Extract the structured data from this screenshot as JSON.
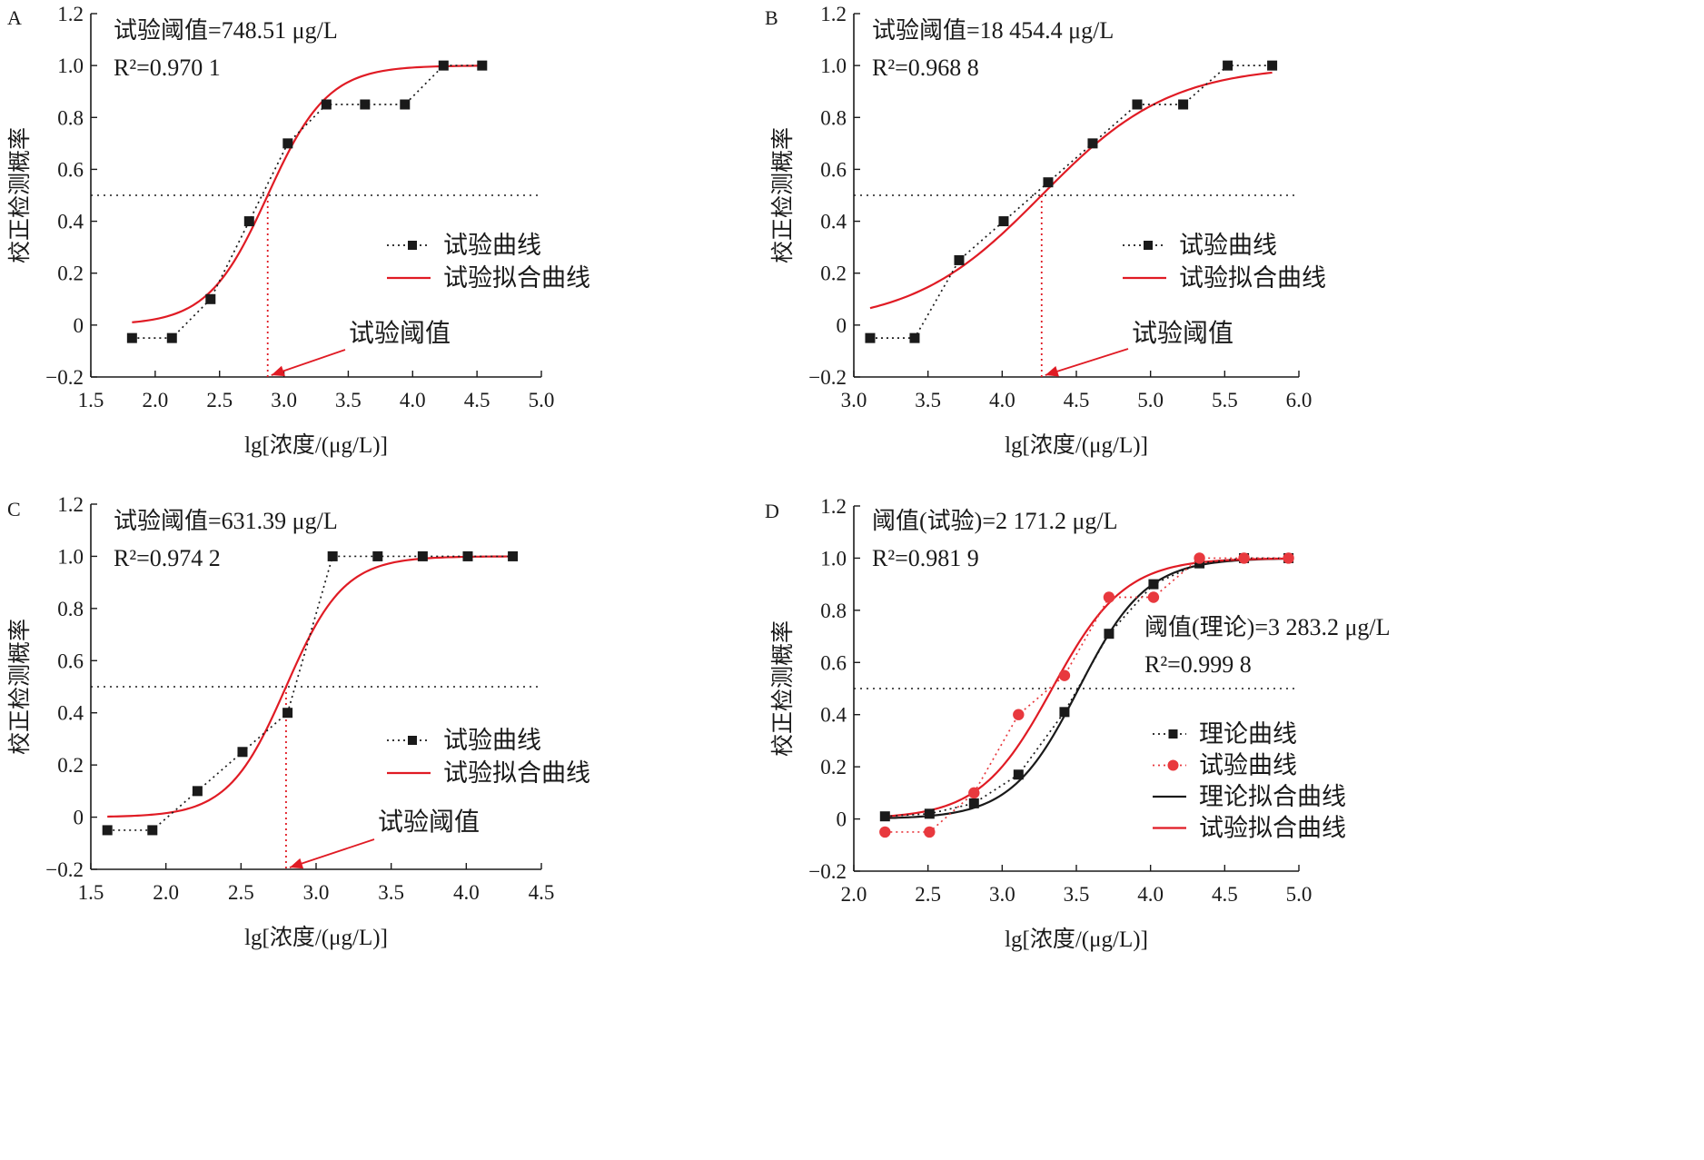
{
  "colors": {
    "black": "#1a1a1a",
    "red": "#e01b24",
    "red_marker": "#e8393e"
  },
  "chart_data": [
    {
      "panel": "A",
      "type": "line",
      "xlabel": "lg[浓度/(μg/L)]",
      "ylabel": "校正检测概率",
      "xlim": [
        1.5,
        5.0
      ],
      "ylim": [
        -0.2,
        1.2
      ],
      "xticks": [
        "1.5",
        "2.0",
        "2.5",
        "3.0",
        "3.5",
        "4.0",
        "4.5",
        "5.0"
      ],
      "yticks": [
        "−0.2",
        "0",
        "0.2",
        "0.4",
        "0.6",
        "0.8",
        "1.0",
        "1.2"
      ],
      "annotations": [
        "试验阈值=748.51 μg/L",
        "R²=0.970 1"
      ],
      "threshold_label": "试验阈值",
      "threshold_x": 2.874,
      "reference_line_y": 0.5,
      "series": [
        {
          "name": "试验曲线",
          "style": "dotted-marker",
          "marker": "square",
          "color": "#1a1a1a",
          "x": [
            1.82,
            2.13,
            2.43,
            2.73,
            3.03,
            3.33,
            3.63,
            3.94,
            4.24,
            4.54
          ],
          "y": [
            -0.05,
            -0.05,
            0.1,
            0.4,
            0.7,
            0.85,
            0.85,
            0.85,
            1.0,
            1.0
          ]
        },
        {
          "name": "试验拟合曲线",
          "style": "solid",
          "color": "#e01b24",
          "fit": {
            "center": 2.874,
            "k": 4.3,
            "low": 0.0,
            "high": 1.0,
            "x0": 1.82,
            "x1": 4.54
          }
        }
      ]
    },
    {
      "panel": "B",
      "type": "line",
      "xlabel": "lg[浓度/(μg/L)]",
      "ylabel": "校正检测概率",
      "xlim": [
        3.0,
        6.0
      ],
      "ylim": [
        -0.2,
        1.2
      ],
      "xticks": [
        "3.0",
        "3.5",
        "4.0",
        "4.5",
        "5.0",
        "5.5",
        "6.0"
      ],
      "yticks": [
        "−0.2",
        "0",
        "0.2",
        "0.4",
        "0.6",
        "0.8",
        "1.0",
        "1.2"
      ],
      "annotations": [
        "试验阈值=18 454.4 μg/L",
        "R²=0.968 8"
      ],
      "threshold_label": "试验阈值",
      "threshold_x": 4.266,
      "reference_line_y": 0.5,
      "series": [
        {
          "name": "试验曲线",
          "style": "dotted-marker",
          "marker": "square",
          "color": "#1a1a1a",
          "x": [
            3.11,
            3.41,
            3.71,
            4.01,
            4.31,
            4.61,
            4.91,
            5.22,
            5.52,
            5.82
          ],
          "y": [
            -0.05,
            -0.05,
            0.25,
            0.4,
            0.55,
            0.7,
            0.85,
            0.85,
            1.0,
            1.0
          ]
        },
        {
          "name": "试验拟合曲线",
          "style": "solid",
          "color": "#e01b24",
          "fit": {
            "center": 4.266,
            "k": 2.3,
            "low": 0.0,
            "high": 1.0,
            "x0": 3.11,
            "x1": 5.82
          }
        }
      ]
    },
    {
      "panel": "C",
      "type": "line",
      "xlabel": "lg[浓度/(μg/L)]",
      "ylabel": "校正检测概率",
      "xlim": [
        1.5,
        4.5
      ],
      "ylim": [
        -0.2,
        1.2
      ],
      "xticks": [
        "1.5",
        "2.0",
        "2.5",
        "3.0",
        "3.5",
        "4.0",
        "4.5"
      ],
      "yticks": [
        "−0.2",
        "0",
        "0.2",
        "0.4",
        "0.6",
        "0.8",
        "1.0",
        "1.2"
      ],
      "annotations": [
        "试验阈值=631.39 μg/L",
        "R²=0.974 2"
      ],
      "threshold_label": "试验阈值",
      "threshold_x": 2.8,
      "reference_line_y": 0.5,
      "series": [
        {
          "name": "试验曲线",
          "style": "dotted-marker",
          "marker": "square",
          "color": "#1a1a1a",
          "x": [
            1.61,
            1.91,
            2.21,
            2.51,
            2.81,
            3.11,
            3.41,
            3.71,
            4.01,
            4.31
          ],
          "y": [
            -0.05,
            -0.05,
            0.1,
            0.25,
            0.4,
            1.0,
            1.0,
            1.0,
            1.0,
            1.0
          ]
        },
        {
          "name": "试验拟合曲线",
          "style": "solid",
          "color": "#e01b24",
          "fit": {
            "center": 2.8,
            "k": 5.2,
            "low": 0.0,
            "high": 1.0,
            "x0": 1.61,
            "x1": 4.31
          }
        }
      ]
    },
    {
      "panel": "D",
      "type": "line",
      "xlabel": "lg[浓度/(μg/L)]",
      "ylabel": "校正检测概率",
      "xlim": [
        2.0,
        5.0
      ],
      "ylim": [
        -0.2,
        1.2
      ],
      "xticks": [
        "2.0",
        "2.5",
        "3.0",
        "3.5",
        "4.0",
        "4.5",
        "5.0"
      ],
      "yticks": [
        "−0.2",
        "0",
        "0.2",
        "0.4",
        "0.6",
        "0.8",
        "1.0",
        "1.2"
      ],
      "annotations": [
        "阈值(试验)=2 171.2 μg/L",
        "R²=0.981 9",
        "阈值(理论)=3 283.2 μg/L",
        "R²=0.999 8"
      ],
      "reference_line_y": 0.5,
      "series": [
        {
          "name": "理论曲线",
          "style": "dotted-marker",
          "marker": "square",
          "color": "#1a1a1a",
          "x": [
            2.21,
            2.51,
            2.81,
            3.11,
            3.42,
            3.72,
            4.02,
            4.33,
            4.63,
            4.93
          ],
          "y": [
            0.01,
            0.02,
            0.06,
            0.17,
            0.41,
            0.71,
            0.9,
            0.98,
            1.0,
            1.0
          ]
        },
        {
          "name": "试验曲线",
          "style": "dotted-marker",
          "marker": "circle",
          "color": "#e8393e",
          "x": [
            2.21,
            2.51,
            2.81,
            3.11,
            3.42,
            3.72,
            4.02,
            4.33,
            4.63,
            4.93
          ],
          "y": [
            -0.05,
            -0.05,
            0.1,
            0.4,
            0.55,
            0.85,
            0.85,
            1.0,
            1.0,
            1.0
          ]
        },
        {
          "name": "理论拟合曲线",
          "style": "solid",
          "color": "#1a1a1a",
          "fit": {
            "center": 3.516,
            "k": 4.4,
            "low": 0.0,
            "high": 1.0,
            "x0": 2.21,
            "x1": 4.93
          }
        },
        {
          "name": "试验拟合曲线",
          "style": "solid",
          "color": "#e01b24",
          "fit": {
            "center": 3.337,
            "k": 4.1,
            "low": 0.0,
            "high": 1.0,
            "x0": 2.21,
            "x1": 4.93
          }
        }
      ]
    }
  ]
}
